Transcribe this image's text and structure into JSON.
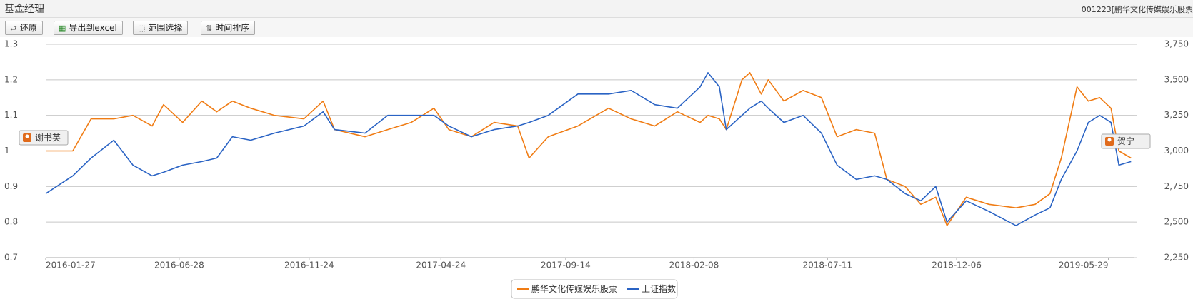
{
  "header": {
    "title": "基金经理",
    "fund": "001223[鹏华文化传媒娱乐股票"
  },
  "toolbar": [
    "还原",
    "导出到excel",
    "范围选择",
    "时间排序"
  ],
  "chart_data": {
    "type": "line",
    "x": [
      "2016-01-27",
      "2016-02-27",
      "2016-03-19",
      "2016-04-14",
      "2016-05-06",
      "2016-05-28",
      "2016-06-10",
      "2016-07-02",
      "2016-07-24",
      "2016-08-10",
      "2016-08-28",
      "2016-09-18",
      "2016-10-15",
      "2016-11-18",
      "2016-12-10",
      "2016-12-23",
      "2017-01-27",
      "2017-02-22",
      "2017-03-21",
      "2017-04-16",
      "2017-05-03",
      "2017-05-29",
      "2017-06-24",
      "2017-07-21",
      "2017-08-03",
      "2017-08-25",
      "2017-09-28",
      "2017-11-02",
      "2017-11-28",
      "2017-12-25",
      "2018-01-20",
      "2018-02-15",
      "2018-02-24",
      "2018-03-09",
      "2018-03-17",
      "2018-04-04",
      "2018-04-13",
      "2018-04-26",
      "2018-05-04",
      "2018-05-22",
      "2018-06-13",
      "2018-07-04",
      "2018-07-22",
      "2018-08-13",
      "2018-09-03",
      "2018-09-17",
      "2018-10-08",
      "2018-10-26",
      "2018-11-12",
      "2018-11-25",
      "2018-12-17",
      "2019-01-12",
      "2019-02-12",
      "2019-03-06",
      "2019-03-23",
      "2019-04-05",
      "2019-04-23",
      "2019-05-06",
      "2019-05-19",
      "2019-06-01",
      "2019-06-10",
      "2019-06-24"
    ],
    "xlim": [
      "2016-01-27",
      "2019-06-27"
    ],
    "xticks": [
      "2016-01-27",
      "2016-06-28",
      "2016-11-24",
      "2017-04-24",
      "2017-09-14",
      "2018-02-08",
      "2018-07-11",
      "2018-12-06",
      "2019-05-29"
    ],
    "ylim": [
      0.7,
      1.3
    ],
    "yticks": [
      0.7,
      0.8,
      0.9,
      1,
      1.1,
      1.2,
      1.3
    ],
    "y2lim": [
      2250,
      3750
    ],
    "y2ticks": [
      {
        "value": 2250,
        "label": "2,250"
      },
      {
        "value": 2500,
        "label": "2,500"
      },
      {
        "value": 2750,
        "label": "2,750"
      },
      {
        "value": 3000,
        "label": "3,000"
      },
      {
        "value": 3250,
        "label": "3,250"
      },
      {
        "value": 3500,
        "label": "3,500"
      },
      {
        "value": 3750,
        "label": "3,750"
      }
    ],
    "grid": true,
    "legend": "bottom",
    "series": [
      {
        "name": "鹏华文化传媒娱乐股票",
        "color": "#f07c14",
        "values": [
          1.0,
          1.0,
          1.09,
          1.09,
          1.1,
          1.07,
          1.13,
          1.08,
          1.14,
          1.11,
          1.14,
          1.12,
          1.1,
          1.09,
          1.14,
          1.06,
          1.04,
          1.06,
          1.08,
          1.12,
          1.06,
          1.04,
          1.08,
          1.07,
          0.98,
          1.04,
          1.07,
          1.12,
          1.09,
          1.07,
          1.11,
          1.08,
          1.1,
          1.09,
          1.06,
          1.2,
          1.22,
          1.16,
          1.2,
          1.14,
          1.17,
          1.15,
          1.04,
          1.06,
          1.05,
          0.92,
          0.9,
          0.85,
          0.87,
          0.79,
          0.87,
          0.85,
          0.84,
          0.85,
          0.88,
          0.98,
          1.18,
          1.14,
          1.15,
          1.12,
          1.0,
          0.98
        ]
      },
      {
        "name": "上证指数",
        "color": "#2a63c4",
        "axis": "y2",
        "values": [
          2700,
          2825,
          2950,
          3075,
          2900,
          2825,
          2850,
          2900,
          2925,
          2950,
          3100,
          3075,
          3125,
          3175,
          3275,
          3150,
          3125,
          3250,
          3250,
          3250,
          3175,
          3100,
          3150,
          3175,
          3200,
          3250,
          3400,
          3400,
          3425,
          3325,
          3300,
          3450,
          3550,
          3450,
          3150,
          3250,
          3300,
          3350,
          3300,
          3200,
          3250,
          3125,
          2900,
          2800,
          2825,
          2800,
          2700,
          2650,
          2750,
          2500,
          2650,
          2575,
          2475,
          2550,
          2600,
          2800,
          3000,
          3200,
          3250,
          3200,
          2900,
          2925
        ]
      }
    ],
    "annotations": [
      "谢书英",
      "贺宁"
    ]
  }
}
